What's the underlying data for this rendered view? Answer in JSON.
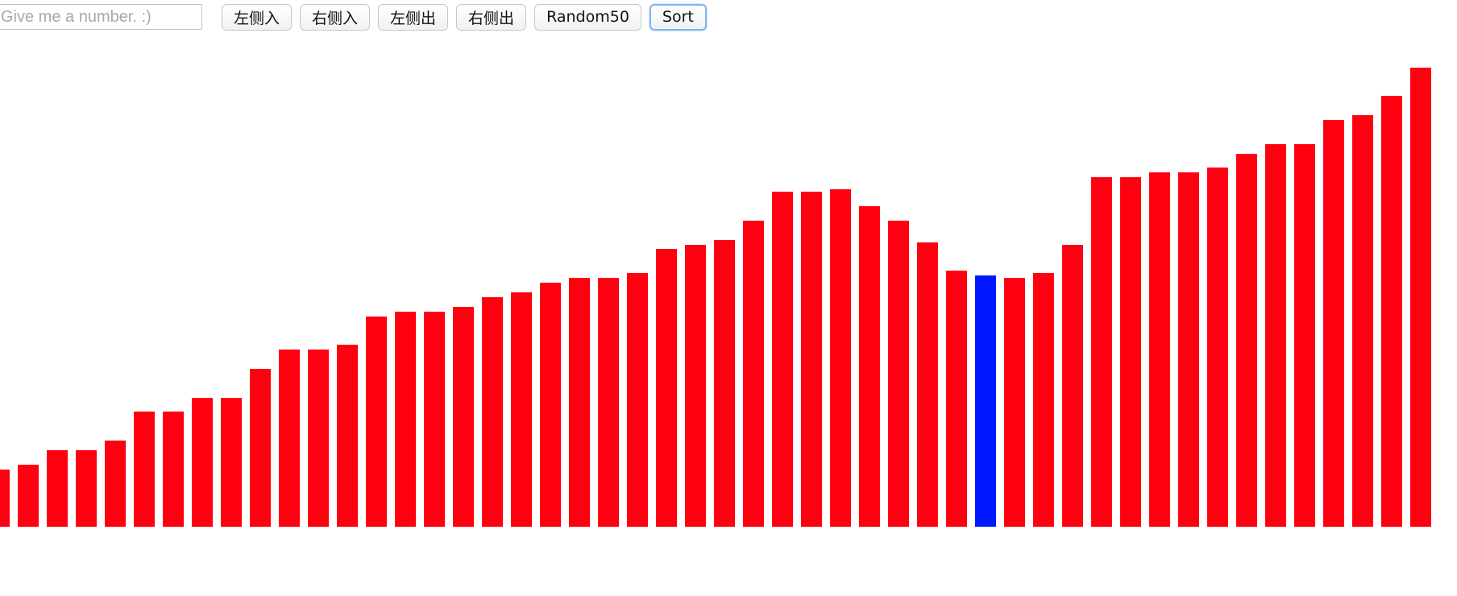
{
  "toolbar": {
    "input_placeholder": "Give me a number. :)",
    "input_value": "",
    "buttons": {
      "left_in": "左侧入",
      "right_in": "右侧入",
      "left_out": "左侧出",
      "right_out": "右侧出",
      "random50": "Random50",
      "sort": "Sort"
    },
    "focused_button": "sort"
  },
  "colors": {
    "bar_default": "#ff0010",
    "bar_active": "#0018ff",
    "background": "#ffffff"
  },
  "chart_data": {
    "type": "bar",
    "ylim": [
      0,
      100
    ],
    "active_index": 34,
    "values": [
      12,
      13,
      16,
      16,
      18,
      24,
      24,
      27,
      27,
      33,
      37,
      37,
      38,
      44,
      45,
      45,
      46,
      48,
      49,
      51,
      52,
      52,
      53,
      58,
      59,
      60,
      64,
      70,
      70,
      70.5,
      67,
      64,
      59.5,
      53.5,
      52.5,
      52,
      53,
      59,
      73,
      73,
      74,
      74,
      75,
      78,
      80,
      80,
      85,
      86,
      90,
      96
    ]
  }
}
